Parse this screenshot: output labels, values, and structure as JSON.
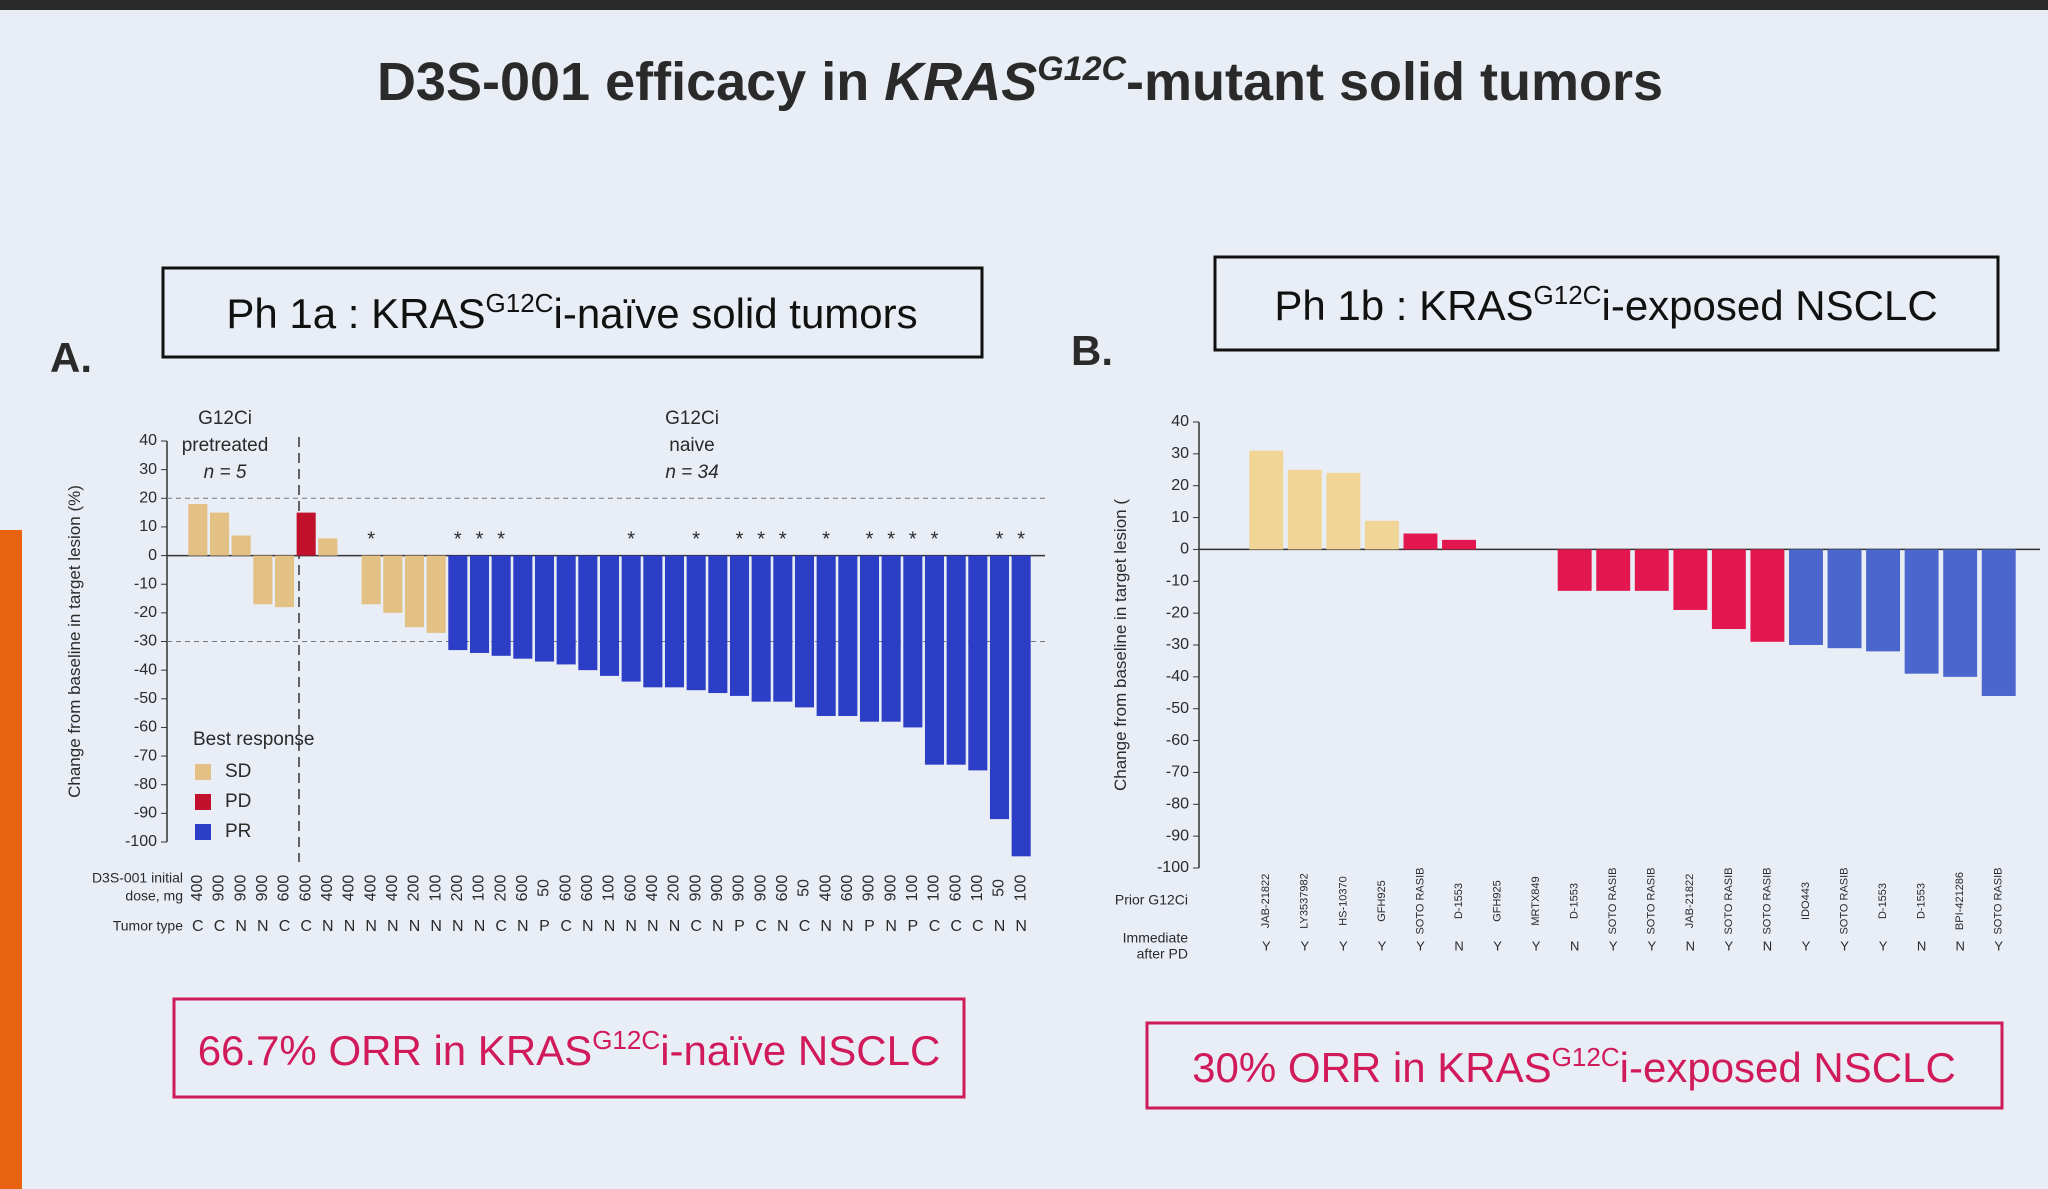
{
  "slide": {
    "title": [
      "D3S-001 efficacy in ",
      "KRAS",
      "G12C",
      "-mutant solid tumors"
    ]
  },
  "chart_data": [
    {
      "type": "bar",
      "panel": "A.",
      "subtitle": [
        "Ph 1a : KRAS",
        "G12C",
        "i-naïve solid tumors"
      ],
      "footnote": [
        "66.7% ORR in KRAS",
        "G12C",
        "i-naïve NSCLC"
      ],
      "ylabel": "Change from baseline in target lesion (%)",
      "ylim": [
        -100,
        40
      ],
      "yticks": [
        40,
        30,
        20,
        10,
        0,
        -10,
        -20,
        -30,
        -40,
        -50,
        -60,
        -70,
        -80,
        -90,
        -100
      ],
      "ref_lines": [
        20,
        -30
      ],
      "annotations": [
        [
          "G12Ci",
          "pretreated",
          "n = 5"
        ],
        [
          "G12Ci",
          "naive",
          "n = 34"
        ]
      ],
      "category_label": [
        "D3S-001 initial",
        "dose, mg"
      ],
      "categories": [
        "400",
        "900",
        "900",
        "900",
        "600",
        "600",
        "400",
        "400",
        "400",
        "400",
        "200",
        "100",
        "200",
        "100",
        "200",
        "600",
        "50",
        "600",
        "600",
        "100",
        "600",
        "400",
        "200",
        "900",
        "900",
        "900",
        "900",
        "600",
        "50",
        "400",
        "600",
        "900",
        "900",
        "100",
        "100",
        "600",
        "100",
        "50",
        "100"
      ],
      "row2_label": [
        "Tumor type"
      ],
      "row2": [
        "C",
        "C",
        "N",
        "N",
        "C",
        "C",
        "N",
        "N",
        "N",
        "N",
        "N",
        "N",
        "N",
        "N",
        "C",
        "N",
        "P",
        "C",
        "N",
        "N",
        "N",
        "N",
        "N",
        "C",
        "N",
        "P",
        "C",
        "N",
        "C",
        "N",
        "N",
        "P",
        "N",
        "P",
        "C",
        "C",
        "C",
        "N",
        "N"
      ],
      "values": [
        18,
        15,
        7,
        -17,
        -18,
        15,
        6,
        0,
        -17,
        -20,
        -25,
        -27,
        -33,
        -34,
        -35,
        -36,
        -37,
        -38,
        -40,
        -42,
        -44,
        -46,
        -46,
        -47,
        -48,
        -49,
        -51,
        -51,
        -53,
        -56,
        -56,
        -58,
        -58,
        -60,
        -73,
        -73,
        -75,
        -92,
        -105
      ],
      "response": [
        "SD",
        "SD",
        "SD",
        "SD",
        "SD",
        "PD",
        "SD",
        "SD",
        "SD",
        "SD",
        "SD",
        "SD",
        "PR",
        "PR",
        "PR",
        "PR",
        "PR",
        "PR",
        "PR",
        "PR",
        "PR",
        "PR",
        "PR",
        "PR",
        "PR",
        "PR",
        "PR",
        "PR",
        "PR",
        "PR",
        "PR",
        "PR",
        "PR",
        "PR",
        "PR",
        "PR",
        "PR",
        "PR",
        "PR"
      ],
      "asterisks": [
        null,
        null,
        null,
        null,
        null,
        null,
        null,
        null,
        "*",
        null,
        null,
        null,
        "*",
        "*",
        "*",
        null,
        null,
        null,
        null,
        null,
        "*",
        null,
        null,
        "*",
        null,
        "*",
        "*",
        "*",
        null,
        "*",
        null,
        "*",
        "*",
        "*",
        "*",
        null,
        null,
        "*",
        "*"
      ],
      "response_colors": {
        "SD": "#e3c185",
        "PD": "#c0102c",
        "PR": "#2d3ec6"
      },
      "legend": {
        "title": "Best response",
        "entries": [
          "SD",
          "PD",
          "PR"
        ]
      }
    },
    {
      "type": "bar",
      "panel": "B.",
      "subtitle": [
        "Ph 1b : KRAS",
        "G12C",
        "i-exposed NSCLC"
      ],
      "footnote": [
        "30% ORR in KRAS",
        "G12C",
        "i-exposed NSCLC"
      ],
      "ylabel": "Change from baseline in target lesion (",
      "ylim": [
        -100,
        40
      ],
      "yticks": [
        40,
        30,
        20,
        10,
        0,
        -10,
        -20,
        -30,
        -40,
        -50,
        -60,
        -70,
        -80,
        -90,
        -100
      ],
      "category_label": [
        "Prior G12Ci"
      ],
      "categories": [
        "JAB-21822",
        "LY3537982",
        "HS-10370",
        "GFH925",
        "SOTO RASIB",
        "D-1553",
        "GFH925",
        "MRTX849",
        "D-1553",
        "SOTO RASIB",
        "SOTO RASIB",
        "JAB-21822",
        "SOTO RASIB",
        "SOTO RASIB",
        "IDO443",
        "SOTO RASIB",
        "D-1553",
        "D-1553",
        "BPI-421286",
        "SOTO RASIB"
      ],
      "row2_label": [
        "Immediate",
        "after PD"
      ],
      "row2": [
        "Y",
        "Y",
        "Y",
        "Y",
        "Y",
        "N",
        "Y",
        "Y",
        "N",
        "Y",
        "Y",
        "N",
        "Y",
        "N",
        "Y",
        "Y",
        "Y",
        "N",
        "N",
        "Y"
      ],
      "values": [
        31,
        25,
        24,
        9,
        5,
        3,
        0,
        0,
        -13,
        -13,
        -13,
        -19,
        -25,
        -29,
        -30,
        -31,
        -32,
        -39,
        -40,
        -46
      ],
      "response": [
        "SD",
        "SD",
        "SD",
        "SD",
        "PD",
        "PD",
        "SD",
        "SD",
        "PD",
        "PD",
        "PD",
        "PD",
        "PD",
        "PD",
        "PR",
        "PR",
        "PR",
        "PR",
        "PR",
        "PR"
      ],
      "response_colors": {
        "SD": "#f0d596",
        "PD": "#e3174f",
        "PR": "#4b66cc"
      }
    }
  ]
}
